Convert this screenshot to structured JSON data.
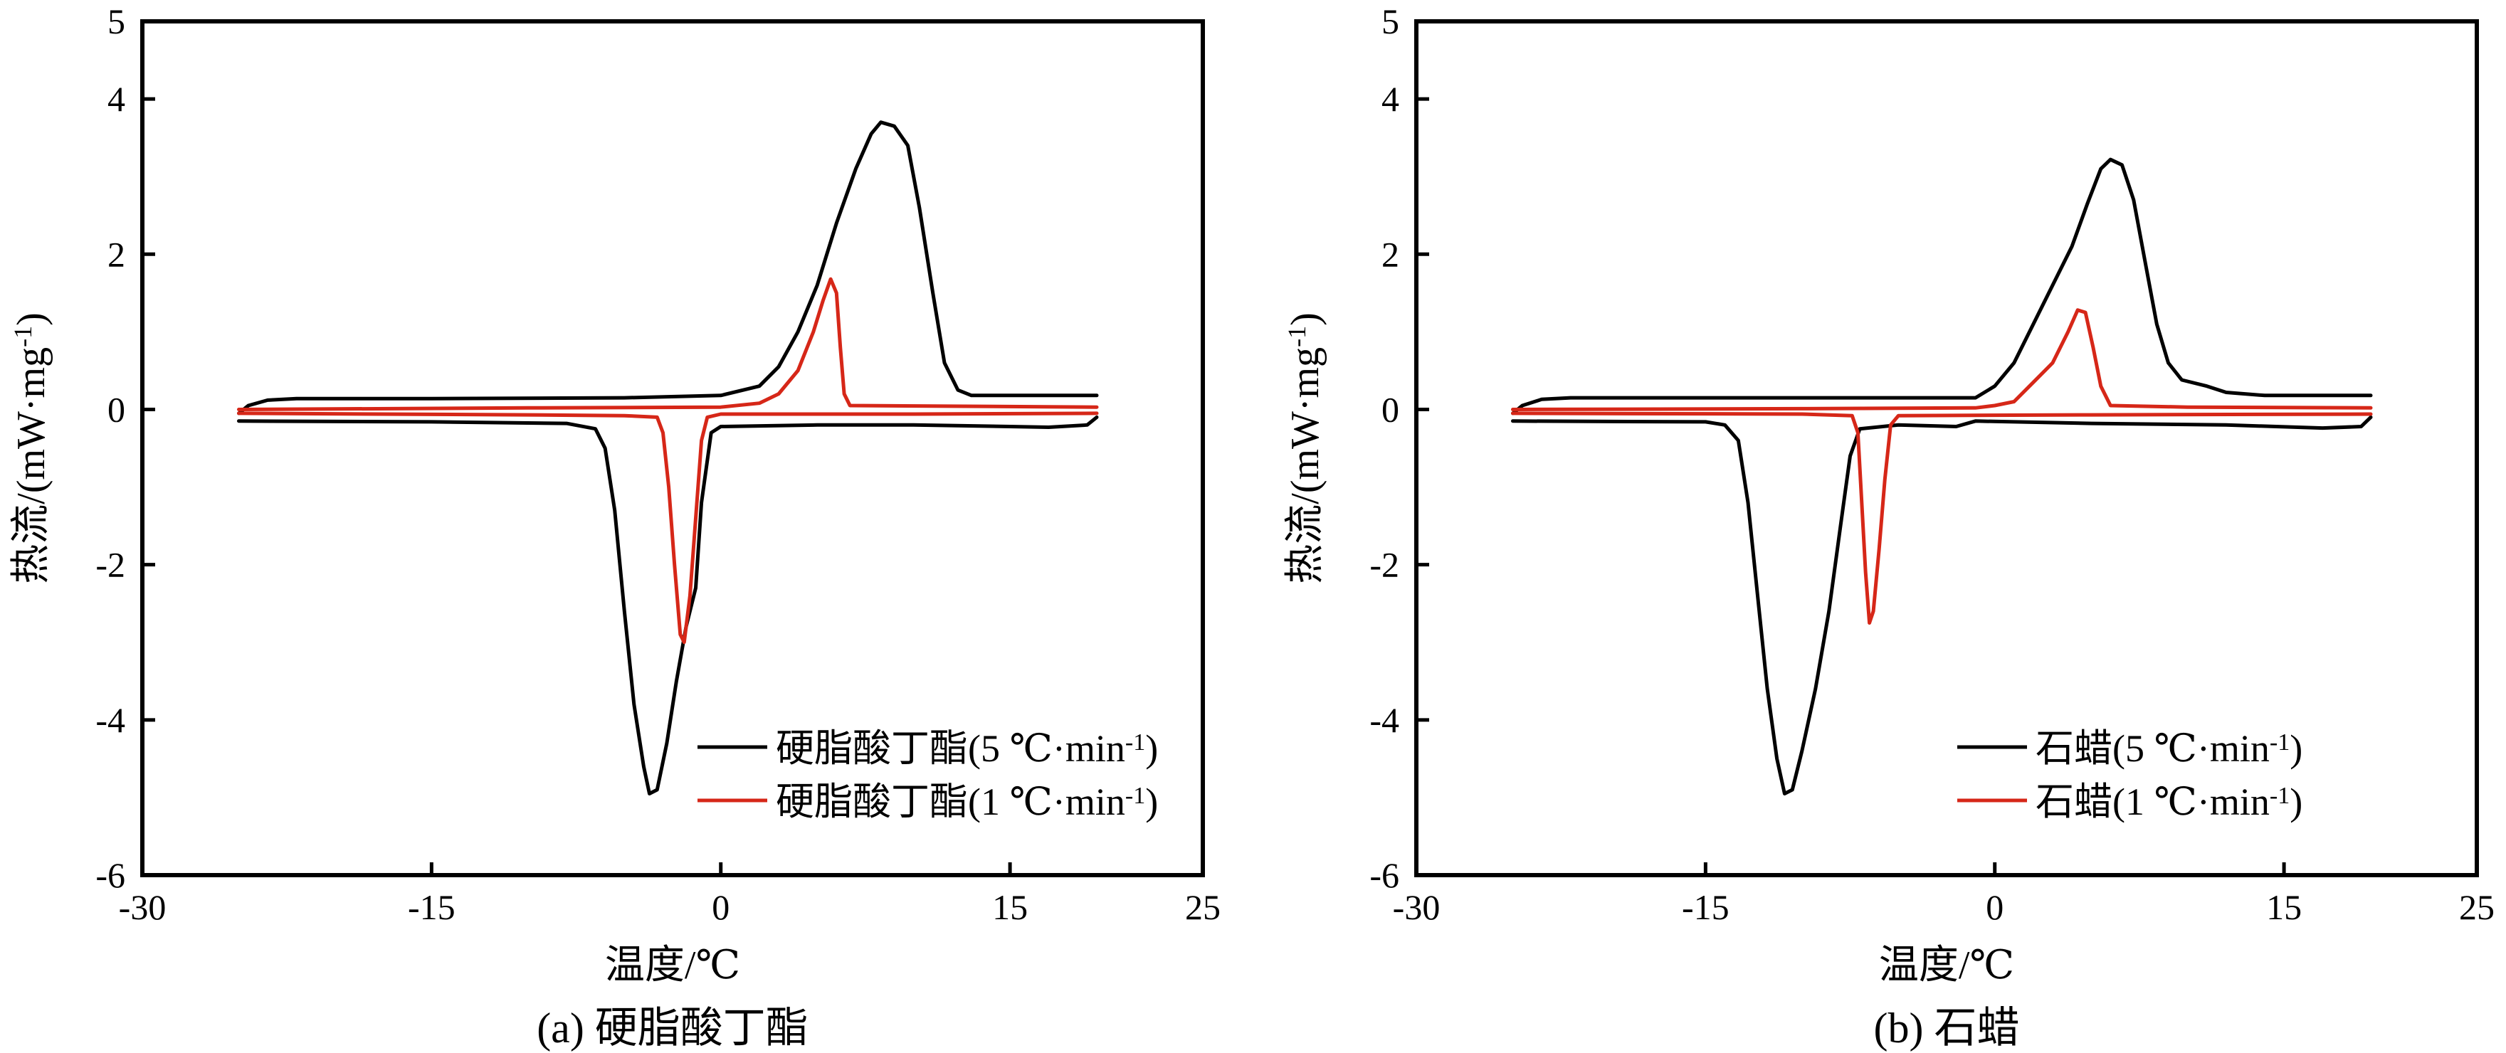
{
  "colors": {
    "series_5": "#000000",
    "series_1": "#d62718"
  },
  "chart_data": [
    {
      "type": "line",
      "caption": "(a) 硬脂酸丁酯",
      "xlabel": "温度/℃",
      "ylabel": "热流/(mW·mg",
      "ylabel_sup": "-1",
      "ylabel_end": ")",
      "xlim": [
        -30,
        25
      ],
      "ylim": [
        -6,
        5
      ],
      "xticks": [
        -30,
        -15,
        0,
        15,
        25
      ],
      "yticks": [
        -6,
        -4,
        -2,
        0,
        2,
        4,
        5
      ],
      "legend_position": "bottom-right",
      "series": [
        {
          "name": "硬脂酸丁酯(5 ℃·min",
          "name_sup": "-1",
          "name_end": ")",
          "color": "#000000",
          "heating": [
            [
              -25,
              -0.05
            ],
            [
              -24.5,
              0.05
            ],
            [
              -23.5,
              0.12
            ],
            [
              -22,
              0.14
            ],
            [
              -15,
              0.14
            ],
            [
              -5,
              0.15
            ],
            [
              0,
              0.18
            ],
            [
              2,
              0.3
            ],
            [
              3,
              0.55
            ],
            [
              4,
              1.0
            ],
            [
              5,
              1.6
            ],
            [
              6,
              2.4
            ],
            [
              7,
              3.1
            ],
            [
              7.8,
              3.55
            ],
            [
              8.3,
              3.7
            ],
            [
              9,
              3.65
            ],
            [
              9.7,
              3.4
            ],
            [
              10.3,
              2.6
            ],
            [
              11,
              1.5
            ],
            [
              11.6,
              0.6
            ],
            [
              12.3,
              0.25
            ],
            [
              13,
              0.18
            ],
            [
              19.5,
              0.18
            ]
          ],
          "cooling": [
            [
              -25,
              -0.15
            ],
            [
              -15,
              -0.16
            ],
            [
              -8,
              -0.18
            ],
            [
              -6.5,
              -0.25
            ],
            [
              -6,
              -0.5
            ],
            [
              -5.5,
              -1.3
            ],
            [
              -5,
              -2.6
            ],
            [
              -4.5,
              -3.8
            ],
            [
              -4,
              -4.6
            ],
            [
              -3.7,
              -4.95
            ],
            [
              -3.3,
              -4.9
            ],
            [
              -2.8,
              -4.3
            ],
            [
              -2.3,
              -3.5
            ],
            [
              -1.8,
              -2.8
            ],
            [
              -1.3,
              -2.3
            ],
            [
              -1,
              -1.2
            ],
            [
              -0.5,
              -0.3
            ],
            [
              0,
              -0.22
            ],
            [
              5,
              -0.2
            ],
            [
              10,
              -0.2
            ],
            [
              15,
              -0.22
            ],
            [
              17,
              -0.23
            ],
            [
              19,
              -0.2
            ],
            [
              19.5,
              -0.1
            ]
          ]
        },
        {
          "name": "硬脂酸丁酯(1 ℃·min",
          "name_sup": "-1",
          "name_end": ")",
          "color": "#d62718",
          "heating": [
            [
              -25,
              0.0
            ],
            [
              -10,
              0.02
            ],
            [
              0,
              0.03
            ],
            [
              2,
              0.08
            ],
            [
              3,
              0.2
            ],
            [
              4,
              0.5
            ],
            [
              4.8,
              1.0
            ],
            [
              5.3,
              1.4
            ],
            [
              5.7,
              1.68
            ],
            [
              6,
              1.5
            ],
            [
              6.2,
              0.8
            ],
            [
              6.4,
              0.2
            ],
            [
              6.7,
              0.05
            ],
            [
              19.5,
              0.03
            ]
          ],
          "cooling": [
            [
              -25,
              -0.05
            ],
            [
              -10,
              -0.07
            ],
            [
              -5,
              -0.08
            ],
            [
              -3.3,
              -0.1
            ],
            [
              -3,
              -0.3
            ],
            [
              -2.7,
              -1.0
            ],
            [
              -2.4,
              -2.0
            ],
            [
              -2.1,
              -2.9
            ],
            [
              -1.9,
              -3.0
            ],
            [
              -1.6,
              -2.4
            ],
            [
              -1.3,
              -1.4
            ],
            [
              -1.0,
              -0.4
            ],
            [
              -0.7,
              -0.1
            ],
            [
              0,
              -0.06
            ],
            [
              10,
              -0.06
            ],
            [
              19.5,
              -0.05
            ]
          ]
        }
      ]
    },
    {
      "type": "line",
      "caption": "(b) 石蜡",
      "xlabel": "温度/℃",
      "ylabel": "热流/(mW·mg",
      "ylabel_sup": "-1",
      "ylabel_end": ")",
      "xlim": [
        -30,
        25
      ],
      "ylim": [
        -6,
        5
      ],
      "xticks": [
        -30,
        -15,
        0,
        15,
        25
      ],
      "yticks": [
        -6,
        -4,
        -2,
        0,
        2,
        4,
        5
      ],
      "legend_position": "bottom-right",
      "series": [
        {
          "name": "石蜡(5 ℃·min",
          "name_sup": "-1",
          "name_end": ")",
          "color": "#000000",
          "heating": [
            [
              -25,
              -0.05
            ],
            [
              -24.5,
              0.05
            ],
            [
              -23.5,
              0.13
            ],
            [
              -22,
              0.15
            ],
            [
              -10,
              0.15
            ],
            [
              -1,
              0.15
            ],
            [
              0,
              0.3
            ],
            [
              1,
              0.6
            ],
            [
              2,
              1.1
            ],
            [
              3,
              1.6
            ],
            [
              4,
              2.1
            ],
            [
              4.8,
              2.65
            ],
            [
              5.5,
              3.1
            ],
            [
              6,
              3.22
            ],
            [
              6.6,
              3.15
            ],
            [
              7.2,
              2.7
            ],
            [
              7.8,
              1.9
            ],
            [
              8.4,
              1.1
            ],
            [
              9,
              0.6
            ],
            [
              9.7,
              0.38
            ],
            [
              11,
              0.3
            ],
            [
              12,
              0.22
            ],
            [
              14,
              0.18
            ],
            [
              19.5,
              0.18
            ]
          ],
          "cooling": [
            [
              -25,
              -0.15
            ],
            [
              -15,
              -0.16
            ],
            [
              -14,
              -0.2
            ],
            [
              -13.3,
              -0.4
            ],
            [
              -12.8,
              -1.2
            ],
            [
              -12.3,
              -2.4
            ],
            [
              -11.8,
              -3.6
            ],
            [
              -11.3,
              -4.5
            ],
            [
              -10.9,
              -4.95
            ],
            [
              -10.5,
              -4.9
            ],
            [
              -10,
              -4.4
            ],
            [
              -9.3,
              -3.6
            ],
            [
              -8.6,
              -2.6
            ],
            [
              -8,
              -1.5
            ],
            [
              -7.5,
              -0.6
            ],
            [
              -7,
              -0.25
            ],
            [
              -5,
              -0.2
            ],
            [
              -2,
              -0.22
            ],
            [
              -1,
              -0.15
            ],
            [
              5,
              -0.18
            ],
            [
              12,
              -0.2
            ],
            [
              17,
              -0.24
            ],
            [
              19,
              -0.22
            ],
            [
              19.5,
              -0.1
            ]
          ]
        },
        {
          "name": "石蜡(1 ℃·min",
          "name_sup": "-1",
          "name_end": ")",
          "color": "#d62718",
          "heating": [
            [
              -25,
              0.0
            ],
            [
              -10,
              0.01
            ],
            [
              -1,
              0.02
            ],
            [
              0,
              0.05
            ],
            [
              1,
              0.1
            ],
            [
              2,
              0.35
            ],
            [
              3,
              0.6
            ],
            [
              3.8,
              1.0
            ],
            [
              4.3,
              1.28
            ],
            [
              4.7,
              1.25
            ],
            [
              5.1,
              0.8
            ],
            [
              5.5,
              0.3
            ],
            [
              6,
              0.05
            ],
            [
              10,
              0.03
            ],
            [
              19.5,
              0.02
            ]
          ],
          "cooling": [
            [
              -25,
              -0.05
            ],
            [
              -10,
              -0.06
            ],
            [
              -7.4,
              -0.08
            ],
            [
              -7.1,
              -0.3
            ],
            [
              -6.9,
              -1.2
            ],
            [
              -6.7,
              -2.1
            ],
            [
              -6.5,
              -2.75
            ],
            [
              -6.3,
              -2.6
            ],
            [
              -6.0,
              -1.8
            ],
            [
              -5.7,
              -0.9
            ],
            [
              -5.4,
              -0.2
            ],
            [
              -5,
              -0.08
            ],
            [
              5,
              -0.07
            ],
            [
              19.5,
              -0.06
            ]
          ]
        }
      ]
    }
  ]
}
